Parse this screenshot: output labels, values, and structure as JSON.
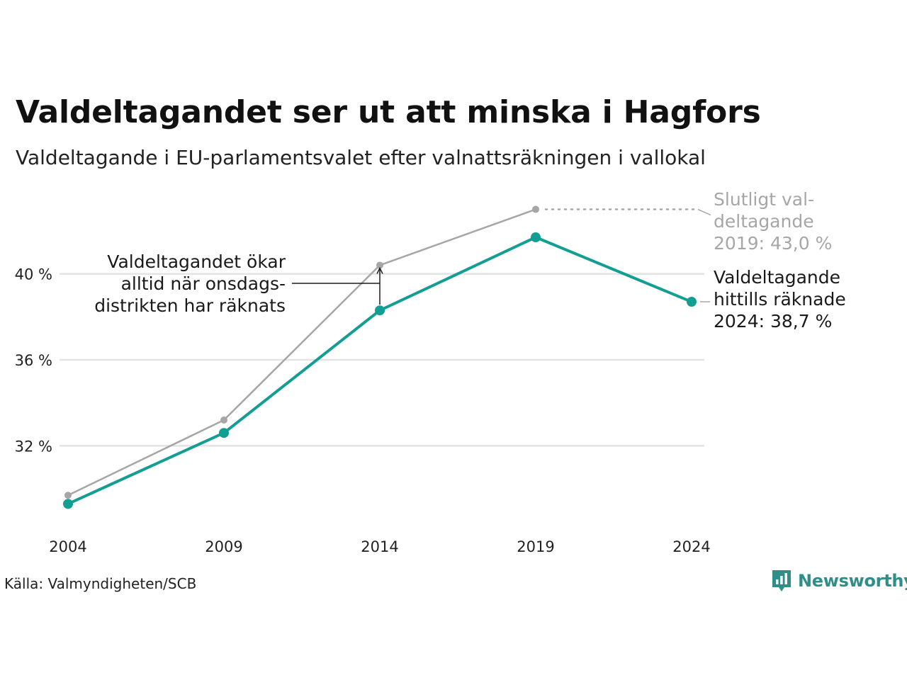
{
  "title": "Valdeltagandet ser ut att minska i Hagfors",
  "subtitle": "Valdeltagande i EU-parlamentsvalet efter valnattsräkningen i vallokal",
  "source": "Källa: Valmyndigheten/SCB",
  "logo": {
    "text": "Newsworthy",
    "icon": "newsworthy-logo-icon",
    "color": "#2e8f88"
  },
  "annotations": {
    "final_2019": [
      "Slutligt val-",
      "deltagande",
      "2019: 43,0 %"
    ],
    "current_2024": [
      "Valdeltagande",
      "hittills räknade",
      "2024: 38,7 %"
    ],
    "wednesday": [
      "Valdeltagandet ökar",
      "alltid när onsdags-",
      "distrikten har räknats"
    ]
  },
  "chart_data": {
    "type": "line",
    "x": [
      2004,
      2009,
      2014,
      2019,
      2024
    ],
    "x_tick_labels": [
      "2004",
      "2009",
      "2014",
      "2019",
      "2024"
    ],
    "y_ticks": [
      32,
      36,
      40
    ],
    "y_tick_labels": [
      "32 %",
      "36 %",
      "40 %"
    ],
    "ylim": [
      27.5,
      44.5
    ],
    "grid": true,
    "series": [
      {
        "values": [
          29.7,
          33.2,
          40.4,
          43.0,
          null
        ],
        "color": "#a6a6a6"
      },
      {
        "values": [
          29.3,
          32.6,
          38.3,
          41.7,
          38.7
        ],
        "color": "#139e93"
      }
    ]
  }
}
